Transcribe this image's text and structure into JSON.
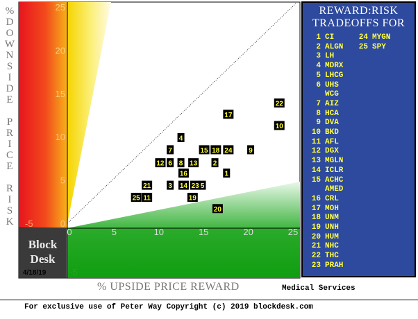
{
  "chart_data": {
    "type": "scatter",
    "title": "REWARD:RISK TRADEOFFS FOR",
    "title_lines": [
      "REWARD:RISK",
      "TRADEOFFS FOR"
    ],
    "xlabel": "% UPSIDE PRICE REWARD",
    "ylabel": "% DOWNSIDE PRICE RISK",
    "xlim": [
      0,
      25
    ],
    "ylim": [
      0,
      25
    ],
    "x_ticks": [
      0,
      5,
      10,
      15,
      20,
      25
    ],
    "y_ticks": [
      0,
      5,
      10,
      15,
      20,
      25
    ],
    "x_tick_labels": [
      "0",
      "5",
      "10",
      "15",
      "20",
      "25"
    ],
    "y_tick_labels": [
      "0",
      "5",
      "10",
      "15",
      "20",
      "25"
    ],
    "y_extra_tick_label": "-5",
    "x_extra_tick_label": "-5",
    "grid": false,
    "reference_line": "diagonal, upside equals downside",
    "legend_placement": "right",
    "sector": "Medical Services",
    "date": "4/18/19",
    "points": [
      {
        "label": "1",
        "ticker": "CI",
        "x": 17.8,
        "y": 5.8
      },
      {
        "label": "2",
        "ticker": "ALGN",
        "x": 16.5,
        "y": 7.0
      },
      {
        "label": "3",
        "ticker": "LH",
        "x": 11.5,
        "y": 4.4
      },
      {
        "label": "4",
        "ticker": "MDRX",
        "x": 12.7,
        "y": 9.9
      },
      {
        "label": "5",
        "ticker": "LHCG",
        "x": 15.1,
        "y": 4.4
      },
      {
        "label": "6",
        "ticker": "UHS",
        "x": 11.5,
        "y": 7.0
      },
      {
        "label": "7",
        "ticker": "AIZ",
        "x": 11.5,
        "y": 8.5
      },
      {
        "label": "8",
        "ticker": "HCA",
        "x": 12.7,
        "y": 7.0
      },
      {
        "label": "9",
        "ticker": "DVA",
        "x": 20.5,
        "y": 8.5
      },
      {
        "label": "12",
        "ticker": "DGX",
        "x": 10.4,
        "y": 7.0
      },
      {
        "label": "13",
        "ticker": "MGLN",
        "x": 14.1,
        "y": 7.0
      },
      {
        "label": "14",
        "ticker": "ICLR",
        "x": 13.0,
        "y": 4.4
      },
      {
        "label": "15",
        "ticker": "ACHC",
        "x": 15.3,
        "y": 8.5
      },
      {
        "label": "16",
        "ticker": "CRL",
        "x": 13.0,
        "y": 5.8
      },
      {
        "label": "17",
        "ticker": "MOH",
        "x": 18.0,
        "y": 12.6
      },
      {
        "label": "18",
        "ticker": "UNM",
        "x": 16.6,
        "y": 8.5
      },
      {
        "label": "24",
        "ticker": "MYGN",
        "x": 18.0,
        "y": 8.5
      },
      {
        "label": "19",
        "ticker": "UNH",
        "x": 14.0,
        "y": 3.0
      },
      {
        "label": "20",
        "ticker": "HUM",
        "x": 16.8,
        "y": 1.7
      },
      {
        "label": "21",
        "ticker": "NHC",
        "x": 8.9,
        "y": 4.4
      },
      {
        "label": "22",
        "ticker": "THC",
        "x": 23.7,
        "y": 13.9
      },
      {
        "label": "10",
        "ticker": "BKD",
        "x": 23.7,
        "y": 11.3
      },
      {
        "label": "23",
        "ticker": "PRAH",
        "x": 14.3,
        "y": 4.4
      },
      {
        "label": "25",
        "ticker": "SPY",
        "x": 7.7,
        "y": 3.0
      },
      {
        "label": "11",
        "ticker": "AFL",
        "x": 8.9,
        "y": 3.0
      }
    ]
  },
  "legend": {
    "items": [
      {
        "num": "1",
        "ticker": "CI"
      },
      {
        "num": "2",
        "ticker": "ALGN"
      },
      {
        "num": "3",
        "ticker": "LH"
      },
      {
        "num": "4",
        "ticker": "MDRX"
      },
      {
        "num": "5",
        "ticker": "LHCG"
      },
      {
        "num": "6",
        "ticker": "UHS"
      },
      {
        "num": "",
        "ticker": "WCG"
      },
      {
        "num": "7",
        "ticker": "AIZ"
      },
      {
        "num": "8",
        "ticker": "HCA"
      },
      {
        "num": "9",
        "ticker": "DVA"
      },
      {
        "num": "10",
        "ticker": "BKD"
      },
      {
        "num": "11",
        "ticker": "AFL"
      },
      {
        "num": "12",
        "ticker": "DGX"
      },
      {
        "num": "13",
        "ticker": "MGLN"
      },
      {
        "num": "14",
        "ticker": "ICLR"
      },
      {
        "num": "15",
        "ticker": "ACHC"
      },
      {
        "num": "",
        "ticker": "AMED"
      },
      {
        "num": "16",
        "ticker": "CRL"
      },
      {
        "num": "17",
        "ticker": "MOH"
      },
      {
        "num": "18",
        "ticker": "UNM"
      },
      {
        "num": "19",
        "ticker": "UNH"
      },
      {
        "num": "20",
        "ticker": "HUM"
      },
      {
        "num": "21",
        "ticker": "NHC"
      },
      {
        "num": "22",
        "ticker": "THC"
      },
      {
        "num": "23",
        "ticker": "PRAH"
      }
    ],
    "items_col2": [
      {
        "num": "24",
        "ticker": "MYGN"
      },
      {
        "num": "25",
        "ticker": "SPY"
      }
    ]
  },
  "brand": {
    "line1": "Block",
    "line2": "Desk"
  },
  "footer": {
    "copyright": "For exclusive use of Peter Way Copyright (c) 2019 blockdesk.com"
  },
  "y_axis_letters": [
    "%",
    "D",
    "O",
    "W",
    "N",
    "S",
    "I",
    "D",
    "E",
    "",
    "P",
    "R",
    "I",
    "C",
    "E",
    "",
    "R",
    "I",
    "S",
    "K"
  ],
  "colors": {
    "panel": "#2e4a9e",
    "label_bg": "#000000",
    "label_text": "#ffff33",
    "risk_red": "#e8141e",
    "reward_green": "#11a011"
  }
}
